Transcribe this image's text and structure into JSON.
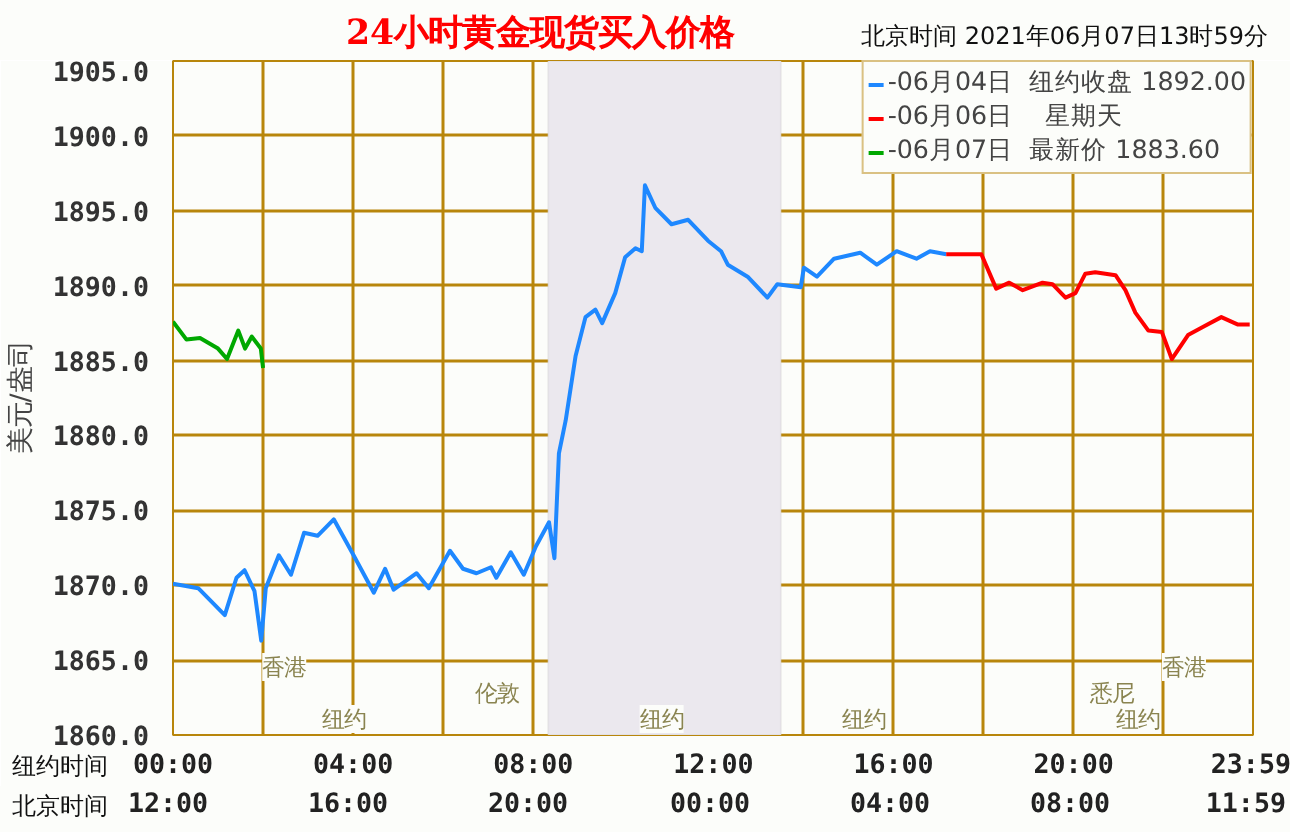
{
  "chart_data": {
    "type": "line",
    "title": "24小时黄金现货买入价格",
    "subtitle": "北京时间   2021年06月07日13时59分",
    "xlabel": "纽约时间",
    "x2label": "北京时间",
    "ylabel": "美元/盎司",
    "xlim": [
      0,
      23.983
    ],
    "ylim": [
      1860,
      1905
    ],
    "xticks": [
      {
        "value": 0,
        "label": "00:00"
      },
      {
        "value": 2,
        "label": null
      },
      {
        "value": 4,
        "label": "04:00"
      },
      {
        "value": 6,
        "label": null
      },
      {
        "value": 8,
        "label": "08:00"
      },
      {
        "value": 10,
        "label": null
      },
      {
        "value": 12,
        "label": "12:00"
      },
      {
        "value": 14,
        "label": null
      },
      {
        "value": 16,
        "label": "16:00"
      },
      {
        "value": 18,
        "label": null
      },
      {
        "value": 20,
        "label": "20:00"
      },
      {
        "value": 22,
        "label": null
      },
      {
        "value": 23.983,
        "label": "23:59"
      }
    ],
    "yticks": [
      {
        "value": 1860,
        "label": "1860.0"
      },
      {
        "value": 1865,
        "label": "1865.0"
      },
      {
        "value": 1870,
        "label": "1870.0"
      },
      {
        "value": 1875,
        "label": "1875.0"
      },
      {
        "value": 1880,
        "label": "1880.0"
      },
      {
        "value": 1885,
        "label": "1885.0"
      },
      {
        "value": 1890,
        "label": "1890.0"
      },
      {
        "value": 1895,
        "label": "1895.0"
      },
      {
        "value": 1900,
        "label": "1900.0"
      },
      {
        "value": 1905,
        "label": "1905.0"
      }
    ],
    "grid": true,
    "legend": "top right",
    "marker": "none",
    "line_style": "solid",
    "bands": [
      {
        "axis": "x",
        "from": 8.33,
        "to": 13.5,
        "color": "#ebe8ee"
      }
    ],
    "annotations": [
      "香港",
      "伦敦",
      "纽约",
      "纽约",
      "纽约",
      "香港",
      "悉尼",
      "纽约",
      "12:00",
      "16:00",
      "20:00",
      "00:00",
      "04:00",
      "08:00",
      "11:59"
    ],
    "series": [
      {
        "name": "-06月04日  纽约收盘 1892.00",
        "color": "#1e88ff",
        "x": [
          0,
          0.56,
          1.15,
          1.41,
          1.59,
          1.81,
          1.96,
          2.06,
          2.35,
          2.62,
          2.91,
          3.21,
          3.57,
          4.01,
          4.46,
          4.71,
          4.9,
          5.41,
          5.68,
          6.15,
          6.44,
          6.74,
          7.06,
          7.18,
          7.5,
          7.79,
          8.06,
          8.35,
          8.47,
          8.57,
          8.72,
          8.94,
          9.16,
          9.38,
          9.53,
          9.82,
          10.04,
          10.27,
          10.41,
          10.48,
          10.71,
          11.07,
          11.44,
          11.88,
          12.17,
          12.32,
          12.76,
          13.2,
          13.42,
          13.94,
          14.01,
          14.3,
          14.68,
          15.26,
          15.63,
          16.07,
          16.51,
          16.81,
          17.17
        ],
        "values": [
          1870.1,
          1869.8,
          1868.0,
          1870.5,
          1871.0,
          1869.6,
          1866.3,
          1869.8,
          1872.0,
          1870.7,
          1873.5,
          1873.3,
          1874.4,
          1872.0,
          1869.5,
          1871.1,
          1869.7,
          1870.8,
          1869.8,
          1872.3,
          1871.1,
          1870.8,
          1871.2,
          1870.5,
          1872.2,
          1870.7,
          1872.6,
          1874.2,
          1871.8,
          1878.8,
          1881.0,
          1885.3,
          1887.9,
          1888.4,
          1887.5,
          1889.5,
          1891.9,
          1892.5,
          1892.3,
          1896.7,
          1895.2,
          1894.1,
          1894.4,
          1893.0,
          1892.3,
          1891.4,
          1890.6,
          1889.2,
          1890.1,
          1889.9,
          1891.2,
          1890.6,
          1891.8,
          1892.2,
          1891.4,
          1892.3,
          1891.8,
          1892.3,
          1892.1
        ]
      },
      {
        "name": "-06月06日    星期天",
        "color": "#ff0000",
        "x": [
          17.17,
          17.95,
          18.28,
          18.57,
          18.87,
          19.31,
          19.53,
          19.82,
          20.04,
          20.26,
          20.48,
          20.93,
          21.15,
          21.37,
          21.66,
          21.96,
          22.18,
          22.54,
          22.91,
          23.28,
          23.65,
          23.91
        ],
        "values": [
          1892.1,
          1892.1,
          1889.8,
          1890.2,
          1889.7,
          1890.2,
          1890.1,
          1889.2,
          1889.5,
          1890.8,
          1890.9,
          1890.7,
          1889.7,
          1888.2,
          1887.0,
          1886.9,
          1885.1,
          1886.7,
          1887.3,
          1887.9,
          1887.4,
          1887.4
        ]
      },
      {
        "name": "-06月07日  最新价 1883.60",
        "color": "#00a800",
        "x": [
          0,
          0.3,
          0.6,
          1.0,
          1.2,
          1.45,
          1.6,
          1.75,
          1.95,
          2.0
        ],
        "values": [
          1887.6,
          1886.4,
          1886.5,
          1885.8,
          1885.1,
          1887.0,
          1885.8,
          1886.6,
          1885.8,
          1884.5
        ]
      }
    ]
  }
}
